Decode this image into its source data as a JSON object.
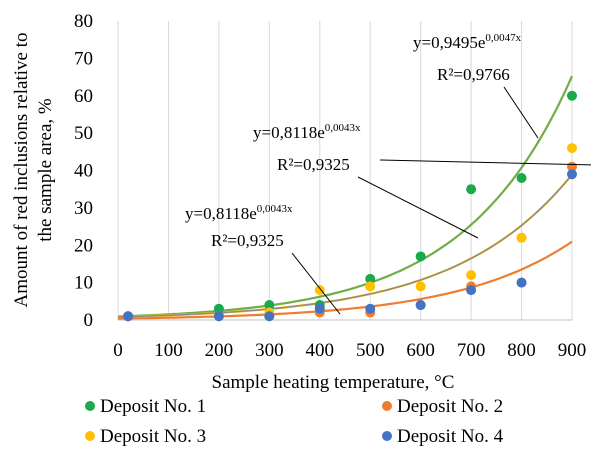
{
  "chart_data": {
    "type": "scatter",
    "title": "",
    "xlabel": "Sample heating temperature, °C",
    "ylabel_lines": [
      "Amount of red inclusions relative to",
      "the sample area, %"
    ],
    "xlim": [
      0,
      900
    ],
    "ylim": [
      0,
      80
    ],
    "xticks": [
      0,
      100,
      200,
      300,
      400,
      500,
      600,
      700,
      800,
      900
    ],
    "yticks": [
      0,
      10,
      20,
      30,
      40,
      50,
      60,
      70,
      80
    ],
    "grid": "vertical",
    "legend_placement": "bottom",
    "series": [
      {
        "name": "Deposit No. 1",
        "color": "#1aaa4b",
        "x": [
          20,
          200,
          300,
          400,
          500,
          600,
          700,
          800,
          900
        ],
        "y": [
          1,
          3,
          4,
          4,
          11,
          17,
          35,
          38,
          60
        ]
      },
      {
        "name": "Deposit No. 2",
        "color": "#ed7d31",
        "x": [
          20,
          200,
          300,
          400,
          500,
          600,
          700,
          800,
          900
        ],
        "y": [
          1,
          1,
          1,
          2,
          2,
          4,
          9,
          10,
          41
        ]
      },
      {
        "name": "Deposit No. 3",
        "color": "#ffc000",
        "x": [
          20,
          200,
          300,
          400,
          500,
          600,
          700,
          800,
          900
        ],
        "y": [
          1,
          1,
          2,
          8,
          9,
          9,
          12,
          22,
          46
        ]
      },
      {
        "name": "Deposit No. 4",
        "color": "#4472c4",
        "x": [
          20,
          200,
          300,
          400,
          500,
          600,
          700,
          800,
          900
        ],
        "y": [
          1,
          1,
          1,
          3,
          3,
          4,
          8,
          10,
          39
        ]
      }
    ],
    "trendlines": [
      {
        "color": "#70ad47",
        "a": 0.9495,
        "b": 0.0047
      },
      {
        "color": "#ed7d31",
        "a": 0.4,
        "b": 0.0044
      },
      {
        "color": "#ffc000",
        "a": 0.8118,
        "b": 0.0043
      },
      {
        "color": "#8a8a8a",
        "a": 0.8118,
        "b": 0.0043
      }
    ],
    "annotations": [
      {
        "equation_base": "y=0,9495e",
        "exponent": "0,0047x",
        "r2": "R²=0,9766"
      },
      {
        "equation_base": "y=0,8118e",
        "exponent": "0,0043x",
        "r2": "R²=0,9325"
      },
      {
        "equation_base": "y=0,8118e",
        "exponent": "0,0043x",
        "r2": "R²=0,9325"
      }
    ]
  }
}
